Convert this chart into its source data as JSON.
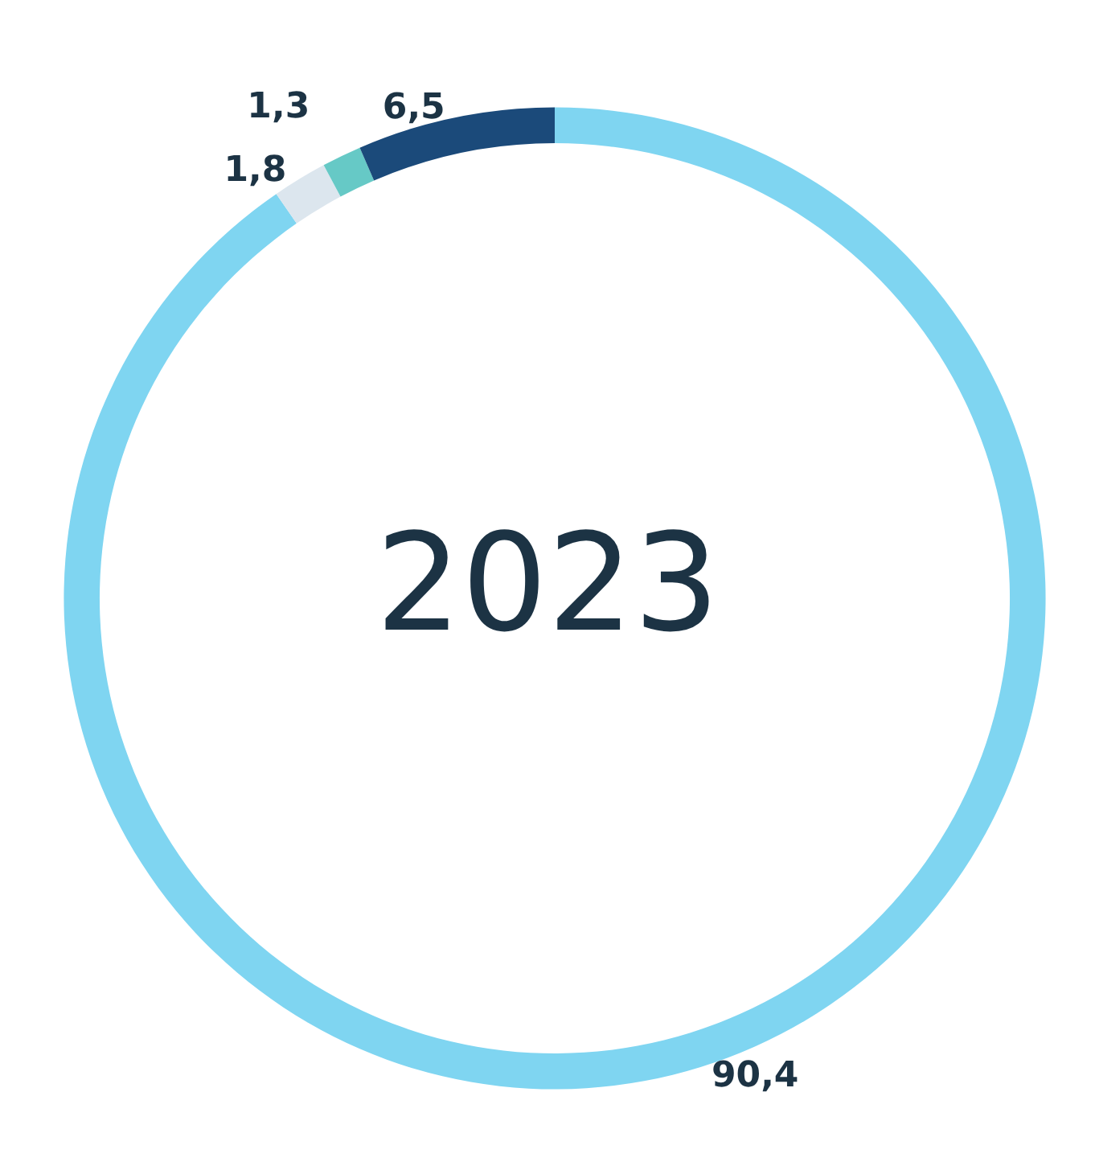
{
  "chart_data": {
    "type": "donut",
    "title": "2023",
    "categories": [
      null,
      null,
      null,
      null
    ],
    "values": [
      90.4,
      1.8,
      1.3,
      6.5
    ],
    "colors": [
      "#7fd5f1",
      "#dce6ee",
      "#66c9c6",
      "#1b4a7a"
    ],
    "value_labels": [
      "90,4",
      "1,8",
      "1,3",
      "6,5"
    ]
  }
}
